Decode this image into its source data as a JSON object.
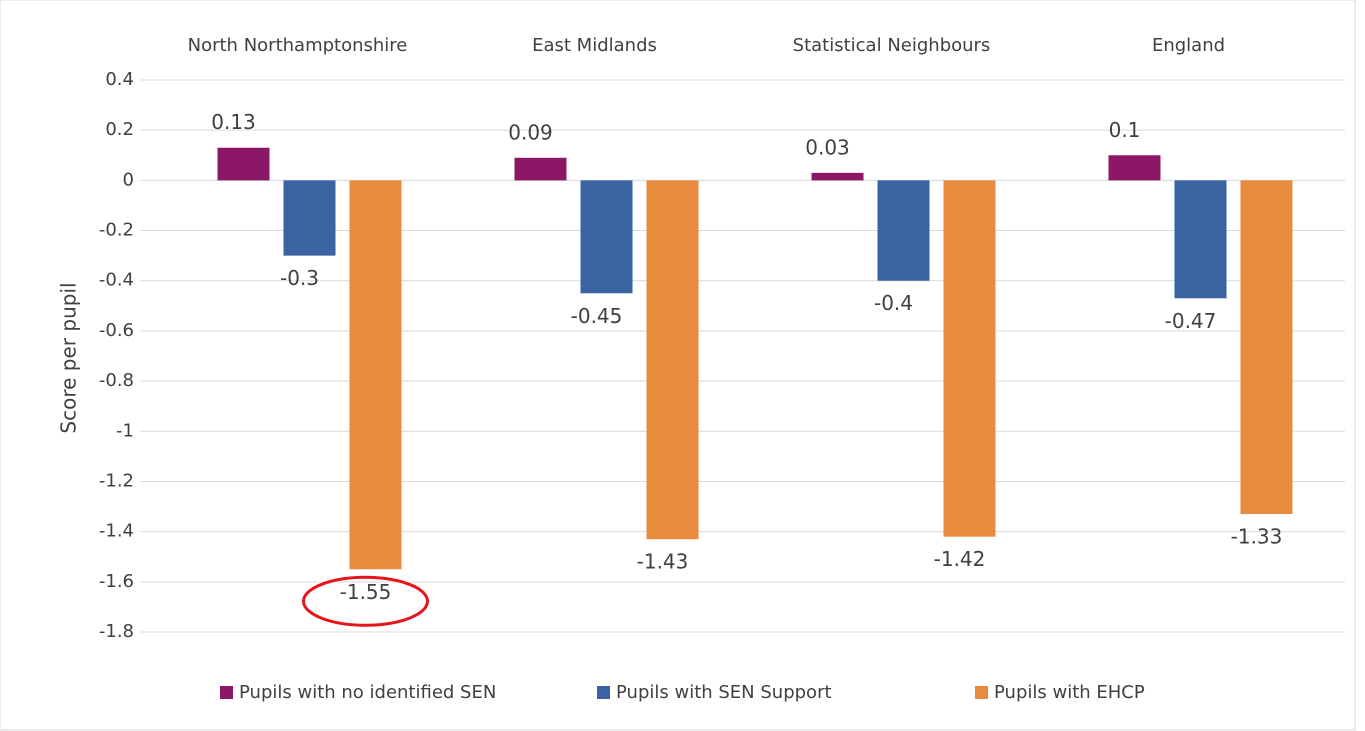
{
  "chart_data": {
    "type": "bar",
    "y_axis_label": "Score per pupil",
    "categories": [
      "North Northamptonshire",
      "East Midlands",
      "Statistical Neighbours",
      "England"
    ],
    "series": [
      {
        "name": "Pupils with no identified SEN",
        "color": "#8b1766",
        "values": [
          0.13,
          0.09,
          0.03,
          0.1
        ]
      },
      {
        "name": "Pupils with SEN Support",
        "color": "#3a63a1",
        "values": [
          -0.3,
          -0.45,
          -0.4,
          -0.47
        ]
      },
      {
        "name": "Pupils with EHCP",
        "color": "#e98b3e",
        "values": [
          -1.55,
          -1.43,
          -1.42,
          -1.33
        ]
      }
    ],
    "ylim": [
      -1.8,
      0.4
    ],
    "yticks": [
      0.4,
      0.2,
      0,
      -0.2,
      -0.4,
      -0.6,
      -0.8,
      -1,
      -1.2,
      -1.4,
      -1.6,
      -1.8
    ],
    "grid": true,
    "legend": "bottom"
  }
}
